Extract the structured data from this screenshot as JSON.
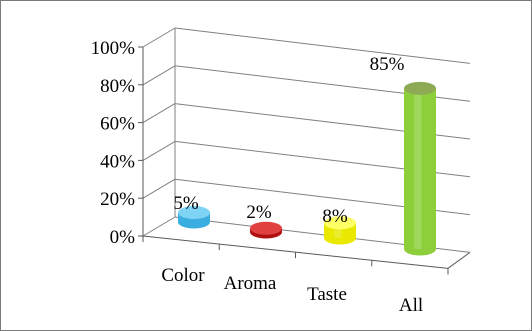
{
  "chart_data": {
    "type": "bar",
    "style": "3d-cylinder",
    "categories": [
      "Color",
      "Aroma",
      "Taste",
      "All"
    ],
    "values": [
      5,
      2,
      8,
      85
    ],
    "data_labels": [
      "5%",
      "2%",
      "8%",
      "85%"
    ],
    "y_ticks": [
      "0%",
      "20%",
      "40%",
      "60%",
      "80%",
      "100%"
    ],
    "ylim": [
      0,
      100
    ],
    "grid": true,
    "legend": "none",
    "colors": {
      "Color": {
        "side": "#3aaee0",
        "top": "#7fd3f5"
      },
      "Aroma": {
        "side": "#b01010",
        "top": "#e04040"
      },
      "Taste": {
        "side": "#e8e800",
        "top": "#ffff66"
      },
      "All": {
        "side": "#8ccf3a",
        "top": "#8faa55"
      }
    },
    "frame_color": "#5a5a5a",
    "grid_color": "#808080"
  }
}
